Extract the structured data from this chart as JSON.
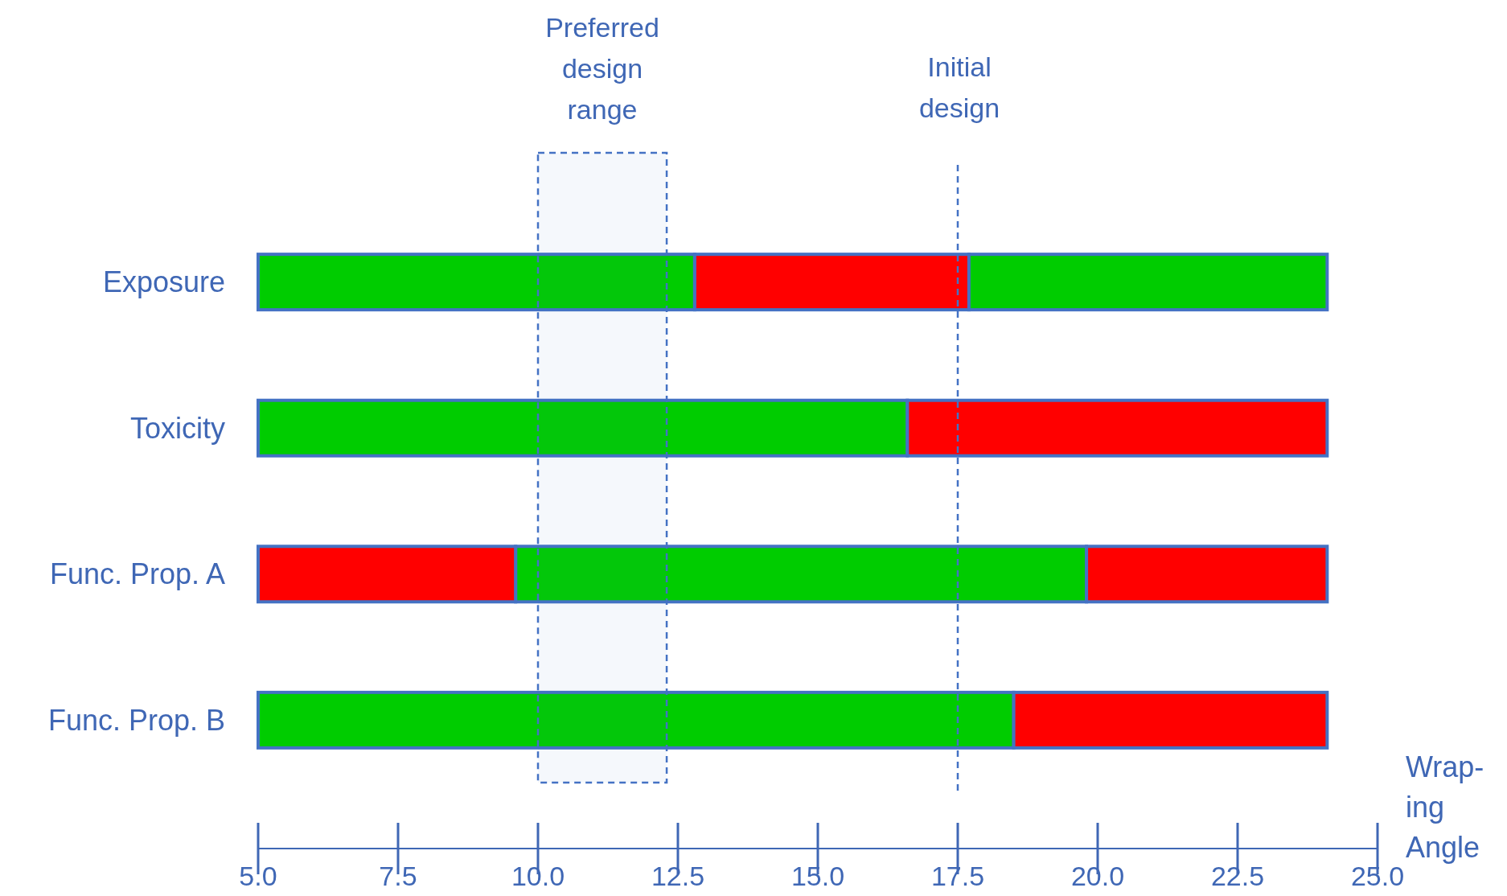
{
  "chart_data": {
    "type": "bar",
    "orientation": "horizontal",
    "categories": [
      "Exposure",
      "Toxicity",
      "Func. Prop. A",
      "Func. Prop. B"
    ],
    "series": [
      {
        "color": "#00cc00",
        "base": [
          5,
          5,
          9.6,
          5
        ],
        "values": [
          7.8,
          11.6,
          10.2,
          13.5
        ]
      },
      {
        "color": "#ff0000",
        "base": [
          12.8,
          16.6,
          5,
          18.5
        ],
        "values": [
          4.9,
          7.5,
          4.6,
          5.6
        ]
      },
      {
        "color": "#00cc00",
        "base": [
          17.7,
          null,
          null,
          null
        ],
        "values": [
          6.4,
          null,
          null,
          null
        ]
      },
      {
        "color": "#ff0000",
        "base": [
          null,
          null,
          19.8,
          null
        ],
        "values": [
          null,
          null,
          4.3,
          null
        ]
      }
    ],
    "xlabel": "Wrap-\ning\nAngle",
    "xlim": [
      5,
      25
    ],
    "xticks": [
      {
        "value": 5,
        "label": "5.0"
      },
      {
        "value": 7.5,
        "label": "7.5"
      },
      {
        "value": 10,
        "label": "10.0"
      },
      {
        "value": 12.5,
        "label": "12.5"
      },
      {
        "value": 15,
        "label": "15.0"
      },
      {
        "value": 17.5,
        "label": "17.5"
      },
      {
        "value": 20,
        "label": "20.0"
      },
      {
        "value": 22.5,
        "label": "22.5"
      },
      {
        "value": 25,
        "label": "25.0"
      }
    ],
    "ref_lines": [
      {
        "axis": "x",
        "value": 17.5,
        "label": "Initial\ndesign",
        "color": "#4472c4",
        "line_style": "dashed"
      }
    ],
    "bands": [
      {
        "axis": "x",
        "from": 10,
        "to": 12.3,
        "label": "Preferred\ndesign\nrange",
        "color": "#4472c4"
      }
    ],
    "grid": false
  }
}
